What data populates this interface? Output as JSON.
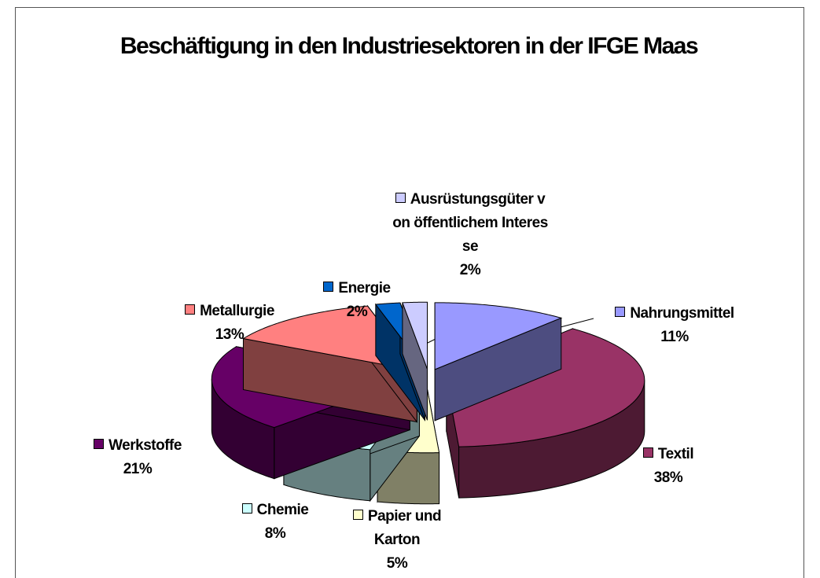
{
  "chart_data": {
    "type": "pie",
    "title": "Beschäftigung in den Industriesektoren in der IFGE Maas",
    "categories": [
      "Nahrungsmittel",
      "Textil",
      "Papier und Karton",
      "Chemie",
      "Werkstoffe",
      "Metallurgie",
      "Energie",
      "Ausrüstungsgüter von öffentlichem Interesse"
    ],
    "values": [
      11,
      38,
      5,
      8,
      21,
      13,
      2,
      2
    ],
    "value_labels": [
      "11%",
      "38%",
      "5%",
      "8%",
      "21%",
      "13%",
      "2%",
      "2%"
    ],
    "colors": [
      "#9999ff",
      "#993366",
      "#ffffcc",
      "#ccffff",
      "#660066",
      "#ff8080",
      "#0066cc",
      "#ccccff"
    ]
  }
}
